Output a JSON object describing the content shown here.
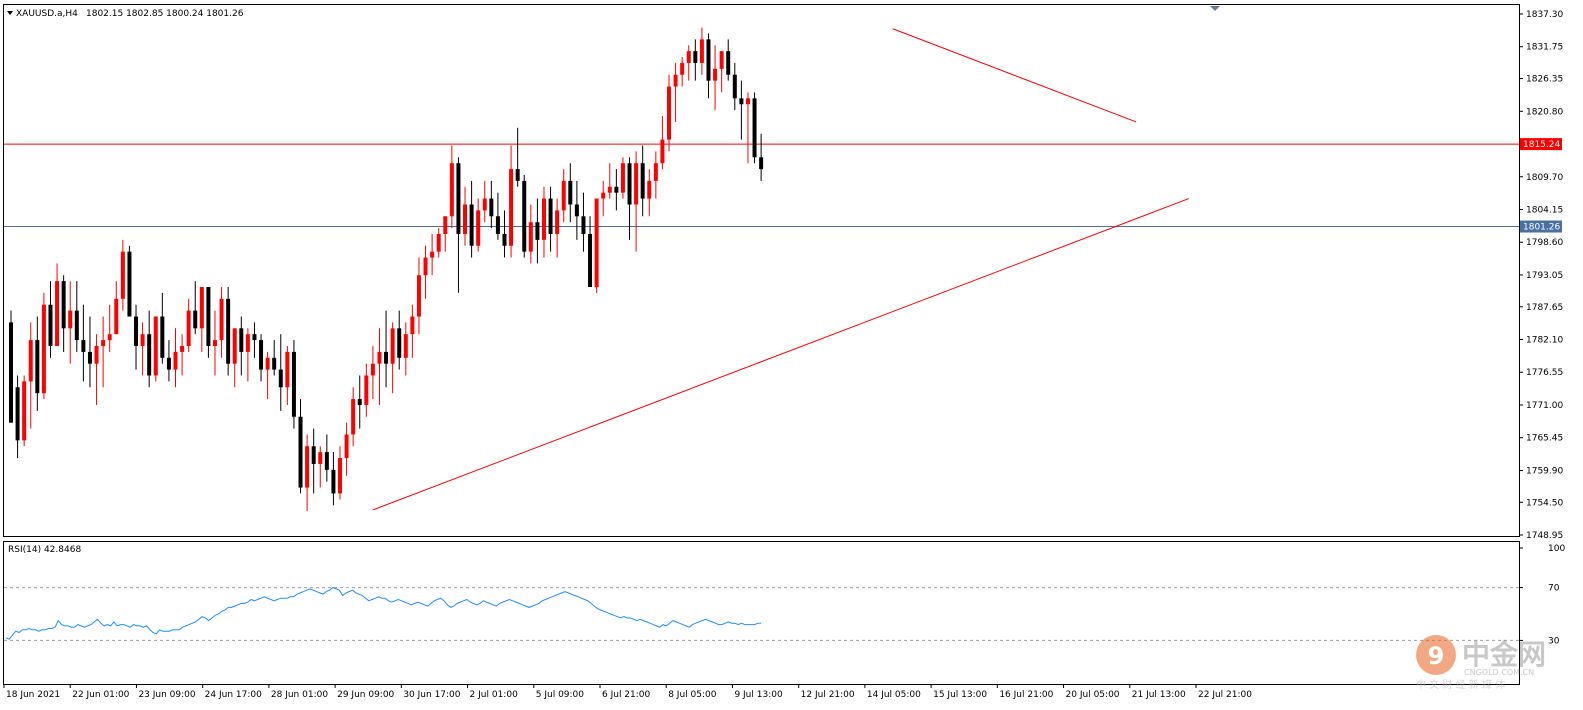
{
  "header": {
    "symbol": "XAUUSD.a,H4",
    "ohlc": "1802.15 1802.85 1800.24 1801.26",
    "menu_icon": "triangle-down-icon"
  },
  "rsi": {
    "label": "RSI(14) 42.8468",
    "levels": [
      70,
      30
    ],
    "axis_labels": [
      "100",
      "70",
      "30"
    ],
    "color": "#1e90ff",
    "values": [
      32,
      31,
      34,
      37,
      36,
      38,
      38,
      39,
      38,
      38,
      37,
      38,
      38,
      39,
      39,
      40,
      45,
      42,
      41,
      41,
      40,
      40,
      42,
      41,
      40,
      41,
      42,
      44,
      46,
      43,
      41,
      42,
      41,
      44,
      41,
      42,
      42,
      41,
      40,
      42,
      41,
      41,
      40,
      41,
      38,
      36,
      35,
      38,
      37,
      37,
      37,
      38,
      38,
      38,
      40,
      41,
      42,
      43,
      44,
      46,
      48,
      47,
      45,
      47,
      49,
      50,
      52,
      53,
      55,
      55,
      56,
      57,
      58,
      58,
      59,
      61,
      60,
      61,
      62,
      63,
      62,
      61,
      60,
      61,
      62,
      62,
      62,
      63,
      63,
      65,
      66,
      67,
      68,
      69,
      68,
      67,
      66,
      65,
      67,
      68,
      70,
      69,
      68,
      64,
      66,
      67,
      68,
      66,
      65,
      64,
      62,
      60,
      61,
      62,
      63,
      62,
      62,
      60,
      59,
      60,
      61,
      60,
      59,
      58,
      57,
      58,
      59,
      58,
      57,
      56,
      58,
      60,
      61,
      62,
      60,
      57,
      55,
      56,
      58,
      59,
      60,
      61,
      59,
      58,
      57,
      58,
      60,
      59,
      58,
      57,
      56,
      58,
      59,
      60,
      61,
      60,
      59,
      58,
      57,
      56,
      55,
      56,
      57,
      58,
      60,
      61,
      62,
      63,
      64,
      65,
      66,
      67,
      66,
      65,
      64,
      63,
      62,
      61,
      60,
      58,
      56,
      54,
      53,
      52,
      51,
      50,
      49,
      48,
      47,
      48,
      47,
      47,
      46,
      45,
      46,
      45,
      44,
      43,
      42,
      41,
      40,
      42,
      41,
      43,
      45,
      44,
      43,
      42,
      41,
      40,
      42,
      43,
      44,
      45,
      46,
      45,
      44,
      43,
      42,
      42,
      43,
      44,
      43,
      43,
      42,
      43,
      42,
      42,
      42,
      42,
      43,
      43
    ],
    "x_labels": [
      "18 Jun 2021",
      "22 Jun 01:00",
      "23 Jun 09:00",
      "24 Jun 17:00",
      "28 Jun 01:00",
      "29 Jun 09:00",
      "30 Jun 17:00",
      "2 Jul 01:00",
      "5 Jul 09:00",
      "6 Jul 21:00",
      "8 Jul 05:00",
      "9 Jul 13:00",
      "12 Jul 21:00",
      "14 Jul 05:00",
      "15 Jul 13:00",
      "16 Jul 21:00",
      "20 Jul 05:00",
      "21 Jul 13:00",
      "22 Jul 21:00"
    ]
  },
  "price_axis": {
    "labels": [
      "1837.30",
      "1831.75",
      "1826.35",
      "1820.80",
      "1815.24",
      "1809.70",
      "1804.15",
      "1801.26",
      "1798.60",
      "1793.05",
      "1787.65",
      "1782.10",
      "1776.55",
      "1771.00",
      "1765.45",
      "1759.90",
      "1754.50",
      "1748.95"
    ]
  },
  "lines": {
    "resistance": 1815.24,
    "current": 1801.26,
    "resistance_label": "1815.24",
    "current_label": "1801.26",
    "resistance_color": "#ff0000",
    "current_color": "#4a6fa5"
  },
  "watermark": {
    "cn": "中金网",
    "domain": "CNGOLD.COM.CN",
    "tagline": "中 文 财 经 新 媒 体"
  },
  "chart_data": {
    "type": "candlestick",
    "title": "XAUUSD.a,H4",
    "ylim": [
      1748.95,
      1837.3
    ],
    "bull_color": "#ff0000",
    "bear_color": "#000000",
    "trendlines": [
      {
        "from": {
          "bar": 55,
          "price": 1753.2
        },
        "to": {
          "bar": 179,
          "price": 1806.0
        }
      },
      {
        "from": {
          "bar": 134,
          "price": 1834.8
        },
        "to": {
          "bar": 171,
          "price": 1819.0
        }
      }
    ],
    "candles": [
      [
        1785.0,
        1787.0,
        1768.0,
        1768.0
      ],
      [
        1774.0,
        1776.0,
        1762.0,
        1765.0
      ],
      [
        1765.0,
        1776.0,
        1764.0,
        1775.0
      ],
      [
        1775.0,
        1785.0,
        1767.0,
        1782.0
      ],
      [
        1782.0,
        1786.0,
        1770.0,
        1773.0
      ],
      [
        1773.0,
        1790.0,
        1772.0,
        1788.0
      ],
      [
        1788.0,
        1792.0,
        1779.0,
        1781.0
      ],
      [
        1781.0,
        1795.0,
        1781.0,
        1792.0
      ],
      [
        1792.0,
        1793.0,
        1780.0,
        1784.0
      ],
      [
        1784.0,
        1792.0,
        1778.0,
        1787.0
      ],
      [
        1787.0,
        1792.0,
        1780.0,
        1782.0
      ],
      [
        1782.0,
        1788.0,
        1775.0,
        1780.0
      ],
      [
        1780.0,
        1786.0,
        1774.0,
        1778.0
      ],
      [
        1778.0,
        1783.0,
        1771.0,
        1781.0
      ],
      [
        1781.0,
        1786.0,
        1774.0,
        1782.0
      ],
      [
        1782.0,
        1788.0,
        1780.0,
        1783.0
      ],
      [
        1783.0,
        1792.0,
        1783.0,
        1789.0
      ],
      [
        1789.0,
        1799.0,
        1787.0,
        1797.0
      ],
      [
        1797.0,
        1798.0,
        1786.0,
        1786.0
      ],
      [
        1786.0,
        1788.0,
        1777.0,
        1781.0
      ],
      [
        1781.0,
        1785.0,
        1776.0,
        1783.0
      ],
      [
        1783.0,
        1787.0,
        1774.0,
        1776.0
      ],
      [
        1776.0,
        1786.0,
        1775.0,
        1786.0
      ],
      [
        1786.0,
        1790.0,
        1778.0,
        1779.0
      ],
      [
        1779.0,
        1782.0,
        1775.0,
        1777.0
      ],
      [
        1777.0,
        1784.0,
        1774.0,
        1780.0
      ],
      [
        1780.0,
        1783.0,
        1776.0,
        1781.0
      ],
      [
        1781.0,
        1789.0,
        1780.0,
        1787.0
      ],
      [
        1787.0,
        1792.0,
        1783.0,
        1784.0
      ],
      [
        1784.0,
        1791.0,
        1780.0,
        1791.0
      ],
      [
        1791.0,
        1791.0,
        1779.0,
        1781.0
      ],
      [
        1781.0,
        1787.0,
        1776.0,
        1782.0
      ],
      [
        1782.0,
        1791.0,
        1779.0,
        1789.0
      ],
      [
        1789.0,
        1791.0,
        1776.0,
        1778.0
      ],
      [
        1778.0,
        1784.0,
        1774.0,
        1784.0
      ],
      [
        1784.0,
        1786.0,
        1776.0,
        1780.0
      ],
      [
        1780.0,
        1784.0,
        1775.0,
        1783.0
      ],
      [
        1783.0,
        1785.0,
        1779.0,
        1782.0
      ],
      [
        1782.0,
        1783.0,
        1775.0,
        1777.0
      ],
      [
        1777.0,
        1780.0,
        1772.0,
        1779.0
      ],
      [
        1779.0,
        1782.0,
        1776.0,
        1777.0
      ],
      [
        1777.0,
        1783.0,
        1770.0,
        1774.0
      ],
      [
        1774.0,
        1781.0,
        1771.0,
        1780.0
      ],
      [
        1780.0,
        1782.0,
        1767.0,
        1769.0
      ],
      [
        1769.0,
        1772.0,
        1756.0,
        1757.0
      ],
      [
        1757.0,
        1766.0,
        1753.0,
        1764.0
      ],
      [
        1764.0,
        1767.0,
        1756.0,
        1761.0
      ],
      [
        1761.0,
        1764.0,
        1757.0,
        1763.0
      ],
      [
        1763.0,
        1766.0,
        1758.0,
        1760.0
      ],
      [
        1760.0,
        1763.0,
        1754.0,
        1756.0
      ],
      [
        1756.0,
        1764.0,
        1755.0,
        1762.0
      ],
      [
        1762.0,
        1768.0,
        1759.0,
        1766.0
      ],
      [
        1766.0,
        1774.0,
        1764.0,
        1772.0
      ],
      [
        1772.0,
        1776.0,
        1767.0,
        1771.0
      ],
      [
        1771.0,
        1778.0,
        1769.0,
        1776.0
      ],
      [
        1776.0,
        1781.0,
        1772.0,
        1778.0
      ],
      [
        1778.0,
        1784.0,
        1771.0,
        1780.0
      ],
      [
        1780.0,
        1787.0,
        1774.0,
        1778.0
      ],
      [
        1778.0,
        1785.0,
        1773.0,
        1784.0
      ],
      [
        1784.0,
        1787.0,
        1777.0,
        1779.0
      ],
      [
        1779.0,
        1785.0,
        1776.0,
        1783.0
      ],
      [
        1783.0,
        1788.0,
        1779.0,
        1786.0
      ],
      [
        1786.0,
        1796.0,
        1783.0,
        1793.0
      ],
      [
        1793.0,
        1798.0,
        1789.0,
        1796.0
      ],
      [
        1796.0,
        1800.0,
        1793.0,
        1797.0
      ],
      [
        1797.0,
        1801.0,
        1796.0,
        1800.0
      ],
      [
        1800.0,
        1803.0,
        1797.0,
        1803.0
      ],
      [
        1803.0,
        1815.0,
        1801.0,
        1812.0
      ],
      [
        1812.0,
        1813.0,
        1790.0,
        1800.0
      ],
      [
        1800.0,
        1808.0,
        1798.0,
        1805.0
      ],
      [
        1805.0,
        1809.0,
        1796.0,
        1798.0
      ],
      [
        1798.0,
        1806.0,
        1797.0,
        1804.0
      ],
      [
        1804.0,
        1809.0,
        1802.0,
        1806.0
      ],
      [
        1806.0,
        1809.0,
        1801.0,
        1803.0
      ],
      [
        1803.0,
        1807.0,
        1799.0,
        1800.0
      ],
      [
        1800.0,
        1804.0,
        1796.0,
        1798.0
      ],
      [
        1798.0,
        1815.0,
        1796.0,
        1811.0
      ],
      [
        1811.0,
        1818.0,
        1808.0,
        1809.0
      ],
      [
        1809.0,
        1810.0,
        1796.0,
        1797.0
      ],
      [
        1797.0,
        1805.0,
        1795.0,
        1802.0
      ],
      [
        1802.0,
        1806.0,
        1795.0,
        1799.0
      ],
      [
        1799.0,
        1808.0,
        1796.0,
        1806.0
      ],
      [
        1806.0,
        1808.0,
        1797.0,
        1800.0
      ],
      [
        1800.0,
        1806.0,
        1796.0,
        1804.0
      ],
      [
        1804.0,
        1811.0,
        1802.0,
        1809.0
      ],
      [
        1809.0,
        1812.0,
        1802.0,
        1805.0
      ],
      [
        1805.0,
        1809.0,
        1799.0,
        1803.0
      ],
      [
        1803.0,
        1807.0,
        1797.0,
        1800.0
      ],
      [
        1800.0,
        1803.0,
        1791.0,
        1791.0
      ],
      [
        1791.0,
        1806.0,
        1790.0,
        1806.0
      ],
      [
        1806.0,
        1809.0,
        1803.0,
        1807.0
      ],
      [
        1807.0,
        1812.0,
        1806.0,
        1808.0
      ],
      [
        1808.0,
        1811.0,
        1804.0,
        1807.0
      ],
      [
        1807.0,
        1813.0,
        1806.0,
        1812.0
      ],
      [
        1812.0,
        1813.0,
        1799.0,
        1805.0
      ],
      [
        1805.0,
        1814.0,
        1797.0,
        1812.0
      ],
      [
        1812.0,
        1815.0,
        1803.0,
        1806.0
      ],
      [
        1806.0,
        1811.0,
        1803.0,
        1809.0
      ],
      [
        1809.0,
        1814.0,
        1806.0,
        1812.0
      ],
      [
        1812.0,
        1820.0,
        1811.0,
        1816.0
      ],
      [
        1816.0,
        1827.0,
        1814.0,
        1825.0
      ],
      [
        1825.0,
        1829.0,
        1819.0,
        1827.0
      ],
      [
        1827.0,
        1830.0,
        1825.0,
        1829.0
      ],
      [
        1829.0,
        1832.0,
        1826.0,
        1831.0
      ],
      [
        1831.0,
        1833.0,
        1826.0,
        1829.0
      ],
      [
        1829.0,
        1835.0,
        1827.0,
        1833.0
      ],
      [
        1833.0,
        1834.0,
        1823.0,
        1826.0
      ],
      [
        1826.0,
        1832.0,
        1821.0,
        1828.0
      ],
      [
        1828.0,
        1831.0,
        1824.0,
        1831.0
      ],
      [
        1831.0,
        1833.0,
        1826.0,
        1827.0
      ],
      [
        1827.0,
        1829.0,
        1821.0,
        1823.0
      ],
      [
        1823.0,
        1826.0,
        1816.0,
        1822.0
      ],
      [
        1822.0,
        1824.0,
        1812.0,
        1823.0
      ],
      [
        1823.0,
        1824.0,
        1812.0,
        1813.0
      ],
      [
        1813.0,
        1817.0,
        1809.0,
        1811.0
      ]
    ]
  }
}
